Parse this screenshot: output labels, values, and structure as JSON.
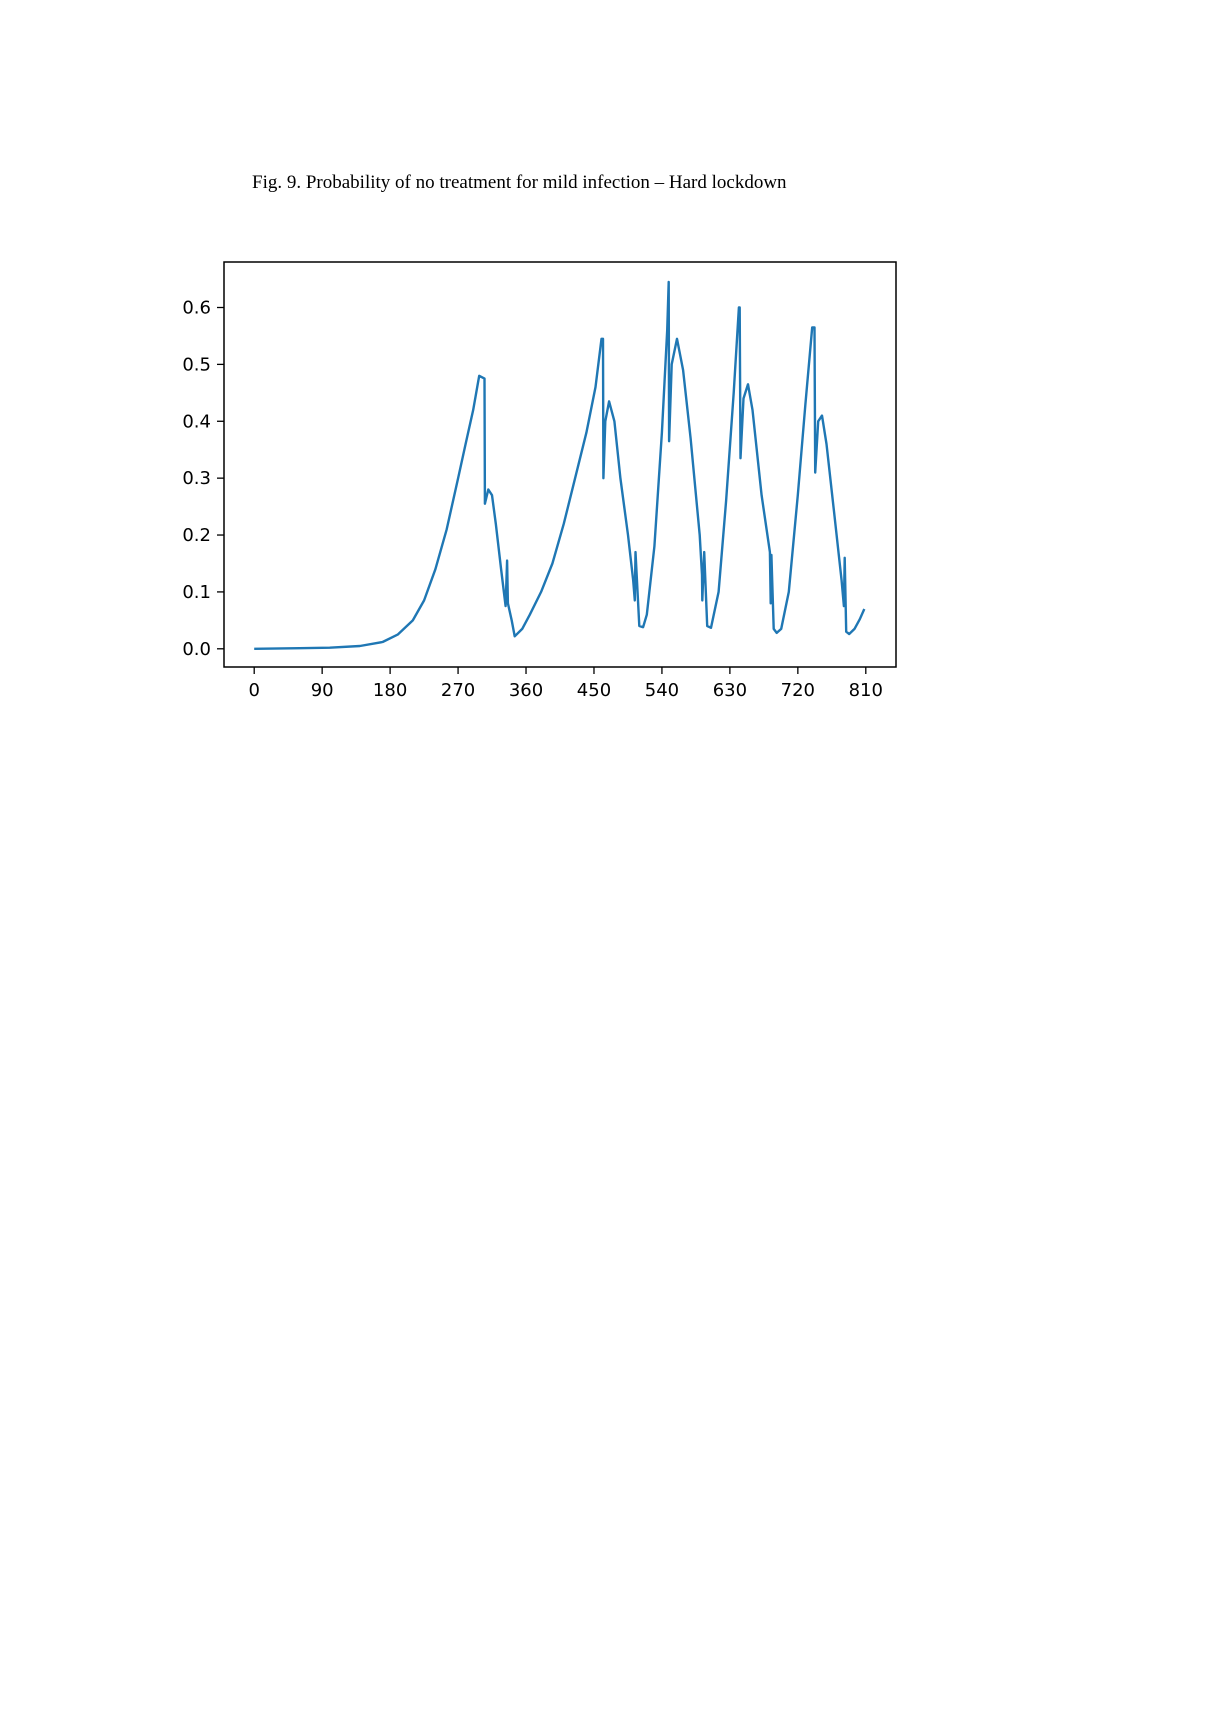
{
  "caption": "Fig. 9. Probability of no treatment for mild infection – Hard lockdown",
  "chart_data": {
    "type": "line",
    "title": "",
    "xlabel": "",
    "ylabel": "",
    "xlim": [
      -40,
      850
    ],
    "ylim": [
      -0.032,
      0.68
    ],
    "xticks": [
      0,
      90,
      180,
      270,
      360,
      450,
      540,
      630,
      720,
      810
    ],
    "xtick_labels": [
      "0",
      "90",
      "180",
      "270",
      "360",
      "450",
      "540",
      "630",
      "720",
      "810"
    ],
    "yticks": [
      0.0,
      0.1,
      0.2,
      0.3,
      0.4,
      0.5,
      0.6
    ],
    "ytick_labels": [
      "0.0",
      "0.1",
      "0.2",
      "0.3",
      "0.4",
      "0.5",
      "0.6"
    ],
    "grid": false,
    "legend": false,
    "line_color": "#1f77b4",
    "series": [
      {
        "x": [
          0,
          60,
          100,
          140,
          170,
          190,
          210,
          225,
          240,
          255,
          270,
          280,
          290,
          298,
          305,
          305.5,
          310,
          315,
          320,
          327,
          333,
          335,
          336,
          341,
          345,
          355,
          365,
          380,
          395,
          410,
          425,
          440,
          452,
          460,
          462,
          462.5,
          465,
          470,
          477,
          485,
          495,
          502,
          504,
          505,
          510,
          515,
          520,
          530,
          540,
          547,
          549,
          549.5,
          553,
          560,
          568,
          578,
          590,
          593,
          593.5,
          596,
          600,
          605,
          615,
          625,
          635,
          642,
          643,
          644,
          648,
          654,
          660,
          672,
          683,
          684,
          685,
          688,
          692,
          698,
          708,
          720,
          730,
          739,
          742,
          743,
          747,
          752,
          758,
          768,
          778,
          781,
          782,
          784,
          788,
          795,
          802,
          808
        ],
        "y": [
          0.0,
          0.001,
          0.002,
          0.005,
          0.012,
          0.025,
          0.05,
          0.085,
          0.14,
          0.21,
          0.3,
          0.36,
          0.42,
          0.48,
          0.475,
          0.255,
          0.28,
          0.27,
          0.22,
          0.14,
          0.075,
          0.155,
          0.08,
          0.05,
          0.022,
          0.035,
          0.06,
          0.1,
          0.15,
          0.22,
          0.3,
          0.38,
          0.46,
          0.545,
          0.545,
          0.3,
          0.4,
          0.435,
          0.4,
          0.3,
          0.2,
          0.12,
          0.085,
          0.17,
          0.04,
          0.038,
          0.06,
          0.18,
          0.38,
          0.56,
          0.645,
          0.365,
          0.5,
          0.545,
          0.49,
          0.37,
          0.2,
          0.13,
          0.085,
          0.17,
          0.04,
          0.037,
          0.1,
          0.26,
          0.45,
          0.6,
          0.6,
          0.335,
          0.44,
          0.465,
          0.42,
          0.27,
          0.17,
          0.08,
          0.165,
          0.035,
          0.028,
          0.035,
          0.1,
          0.27,
          0.43,
          0.565,
          0.565,
          0.31,
          0.4,
          0.41,
          0.36,
          0.24,
          0.12,
          0.075,
          0.16,
          0.03,
          0.026,
          0.035,
          0.052,
          0.07
        ]
      }
    ]
  }
}
